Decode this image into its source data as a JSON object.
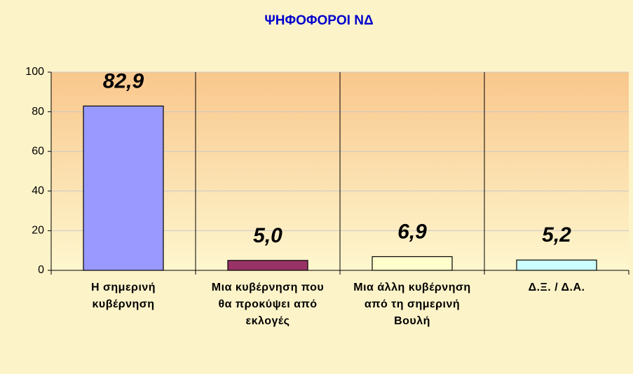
{
  "chart_data": {
    "type": "bar",
    "title": "ΨΗΦΟΦΟΡΟΙ ΝΔ",
    "categories": [
      "Η σημερινή κυβέρνηση",
      "Μια κυβέρνηση που θα προκύψει από εκλογές",
      "Μια άλλη κυβέρνηση από τη σημερινή Βουλή",
      "Δ.Ξ. / Δ.Α."
    ],
    "values": [
      82.9,
      5.0,
      6.9,
      5.2
    ],
    "value_labels": [
      "82,9",
      "5,0",
      "6,9",
      "5,2"
    ],
    "colors": [
      "#9999ff",
      "#993366",
      "#ffffcc",
      "#ccffff"
    ],
    "ylim": [
      0,
      100
    ],
    "yticks": [
      0,
      20,
      40,
      60,
      80,
      100
    ],
    "grid": true
  }
}
